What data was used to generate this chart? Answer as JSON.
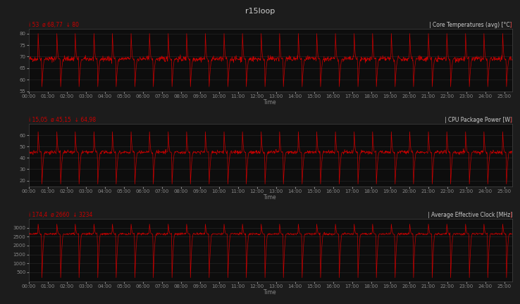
{
  "title": "r15loop",
  "bg_color": "#1c1c1c",
  "panel_bg": "#0d0d0d",
  "line_color": "#cc0000",
  "grid_color": "#2a2a2a",
  "text_color": "#cccccc",
  "label_color": "#888888",
  "stats_color": "#cc0000",
  "axes": [
    {
      "ylabel_right": "Core Temperatures (avg) [°C]",
      "stat_i": "i 53",
      "stat_avg": "ø 68,77",
      "stat_max": "↓ 80",
      "ylim": [
        55,
        82
      ],
      "yticks": [
        55,
        60,
        65,
        70,
        75,
        80
      ],
      "baseline": 69,
      "spike_high": 80,
      "spike_low": 57,
      "noise_amp": 1.2,
      "base_noise": 0.6,
      "n_spikes": 26
    },
    {
      "ylabel_right": "CPU Package Power [W]",
      "stat_i": "i 15,05",
      "stat_avg": "ø 45,15",
      "stat_max": "↓ 64,98",
      "ylim": [
        15,
        70
      ],
      "yticks": [
        20,
        30,
        40,
        50,
        60
      ],
      "baseline": 45,
      "spike_high": 63,
      "spike_low": 17,
      "noise_amp": 1.5,
      "base_noise": 0.8,
      "n_spikes": 26
    },
    {
      "ylabel_right": "Average Effective Clock [MHz]",
      "stat_i": "i 174,4",
      "stat_avg": "ø 2660",
      "stat_max": "↓ 3234",
      "ylim": [
        0,
        3500
      ],
      "yticks": [
        500,
        1000,
        1500,
        2000,
        2500,
        3000
      ],
      "baseline": 2650,
      "spike_high": 3200,
      "spike_low": 200,
      "noise_amp": 60,
      "base_noise": 30,
      "n_spikes": 26
    }
  ],
  "time_total_seconds": 1525,
  "xtick_interval_seconds": 60,
  "n_points": 1525
}
